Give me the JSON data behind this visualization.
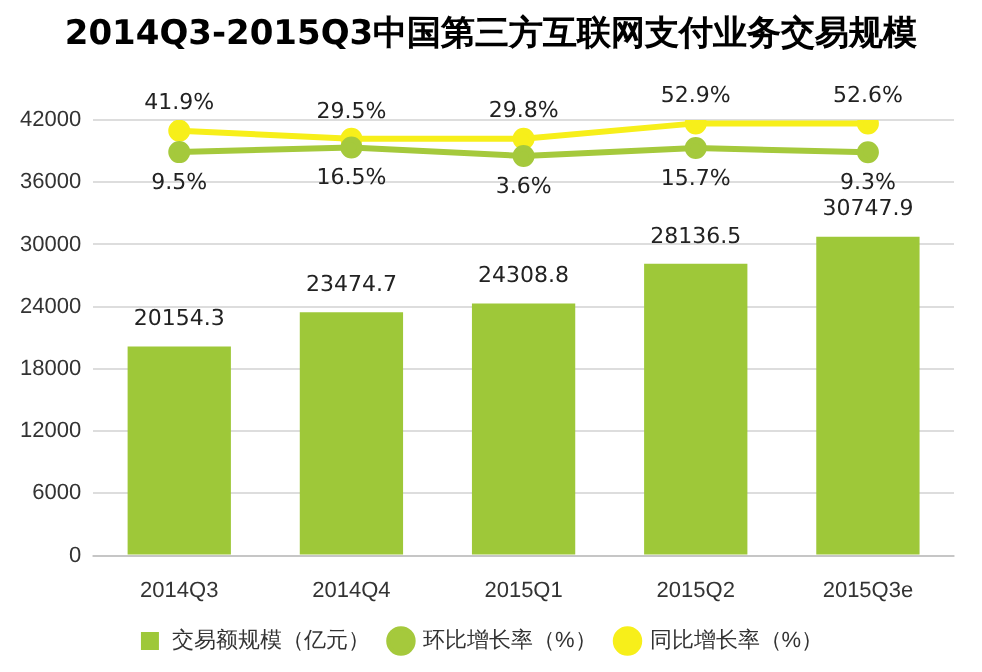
{
  "chart_data": {
    "type": "bar",
    "title": "2014Q3-2015Q3中国第三方互联网支付业务交易规模",
    "categories": [
      "2014Q3",
      "2014Q4",
      "2015Q1",
      "2015Q2",
      "2015Q3e"
    ],
    "series": [
      {
        "name": "交易额规模（亿元）",
        "color": "#9ec839",
        "values": [
          20154.3,
          23474.7,
          24308.8,
          28136.5,
          30747.9
        ]
      },
      {
        "name": "环比增长率（%）",
        "type": "line",
        "axis": "y2",
        "color": "#a5c93c",
        "values": [
          9.5,
          16.5,
          3.6,
          15.7,
          9.3
        ],
        "value_labels": [
          "9.5%",
          "16.5%",
          "3.6%",
          "15.7%",
          "9.3%"
        ]
      },
      {
        "name": "同比增长率（%）",
        "type": "line",
        "axis": "y2",
        "color": "#f7ef1a",
        "values": [
          41.9,
          29.5,
          29.8,
          52.9,
          52.6
        ],
        "value_labels": [
          "41.9%",
          "29.5%",
          "29.8%",
          "52.9%",
          "52.6%"
        ]
      }
    ],
    "ylim": [
      0,
      42000
    ],
    "yticks": [
      0,
      6000,
      12000,
      18000,
      24000,
      30000,
      36000,
      42000
    ],
    "y2lim": [
      -600,
      58
    ],
    "grid": "y",
    "legend": "bottom",
    "marker": "circle",
    "data_labels": true
  }
}
